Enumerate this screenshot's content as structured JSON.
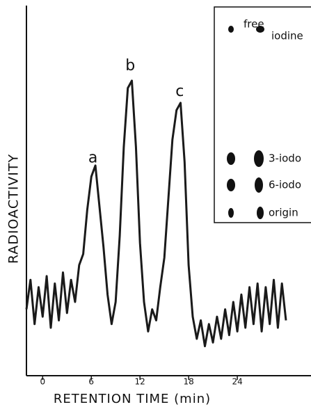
{
  "chart_data": {
    "type": "line",
    "x_label": "RETENTION TIME (min)",
    "y_label": "RADIOACTIVITY",
    "xlim": [
      -2,
      33
    ],
    "xticks": [
      0,
      6,
      12,
      18,
      24
    ],
    "ylim": [
      0,
      100
    ],
    "color": "#1a1a1a",
    "x": [
      -2,
      -1.5,
      -1,
      -0.5,
      0,
      0.5,
      1,
      1.5,
      2,
      2.5,
      3,
      3.5,
      4,
      4.5,
      5,
      5.5,
      6,
      6.5,
      7,
      7.5,
      8,
      8.5,
      9,
      9.5,
      10,
      10.5,
      11,
      11.5,
      12,
      12.5,
      13,
      13.5,
      14,
      14.5,
      15,
      15.5,
      16,
      16.5,
      17,
      17.5,
      18,
      18.5,
      19,
      19.5,
      20,
      20.5,
      21,
      21.5,
      22,
      22.5,
      23,
      23.5,
      24,
      24.5,
      25,
      25.5,
      26,
      26.5,
      27,
      27.5,
      28,
      28.5,
      29,
      29.5,
      30
    ],
    "values": [
      18,
      26,
      14,
      24,
      16,
      27,
      13,
      25,
      15,
      28,
      17,
      26,
      20,
      30,
      33,
      45,
      54,
      57,
      46,
      35,
      22,
      14,
      20,
      38,
      62,
      78,
      80,
      62,
      36,
      20,
      12,
      18,
      15,
      24,
      32,
      48,
      64,
      72,
      74,
      58,
      30,
      16,
      10,
      15,
      8,
      14,
      9,
      16,
      10,
      18,
      11,
      20,
      12,
      22,
      13,
      24,
      14,
      25,
      12,
      24,
      14,
      26,
      13,
      25,
      15
    ],
    "annotations": [
      {
        "text": "a",
        "x": 6.2,
        "y": 59
      },
      {
        "text": "b",
        "x": 10.8,
        "y": 84
      },
      {
        "text": "c",
        "x": 16.9,
        "y": 77
      }
    ],
    "inset_labels": [
      "free",
      "iodine",
      "3-iodo",
      "6-iodo",
      "origin"
    ]
  }
}
